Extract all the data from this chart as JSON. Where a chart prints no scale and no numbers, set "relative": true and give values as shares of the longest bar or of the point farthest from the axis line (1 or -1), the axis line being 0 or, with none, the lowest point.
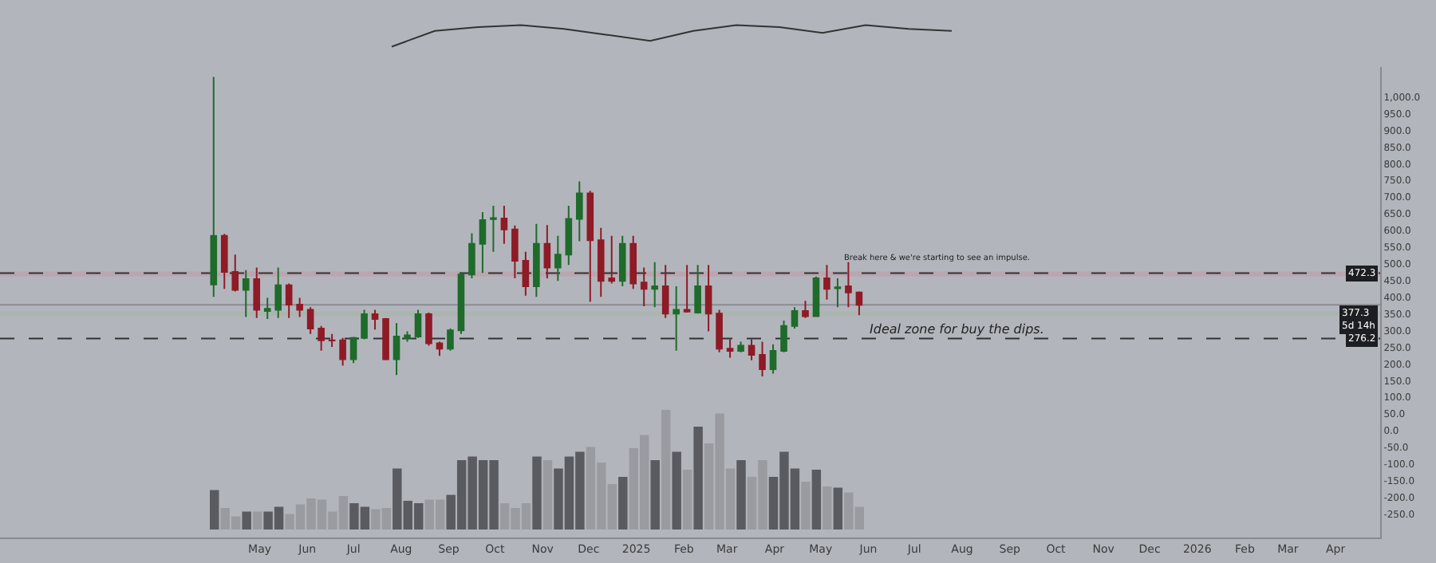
{
  "chart_data": [
    {
      "type": "line",
      "relative": true,
      "categories": [
        null,
        null,
        null,
        null,
        null,
        null,
        null,
        null,
        null,
        null,
        null,
        null,
        null,
        null
      ],
      "series": [
        {
          "color": "#333333",
          "values": [
            0,
            0.73,
            0.91,
            1,
            0.82,
            0.55,
            0.27,
            0.73,
            1,
            0.91,
            0.64,
            1,
            0.82,
            0.73
          ]
        }
      ]
    },
    {
      "type": "candlestick",
      "colors": [
        "#1e6b2b",
        "#8e1b26",
        "#8e1b26",
        "#1e6b2b",
        "#8e1b26",
        "#1e6b2b",
        "#1e6b2b",
        "#8e1b26",
        "#8e1b26",
        "#8e1b26",
        "#8e1b26",
        "#8e1b26",
        "#8e1b26",
        "#1e6b2b",
        "#1e6b2b",
        "#8e1b26",
        "#8e1b26",
        "#1e6b2b",
        "#1e6b2b",
        "#1e6b2b",
        "#8e1b26",
        "#8e1b26",
        "#1e6b2b",
        "#1e6b2b",
        "#1e6b2b",
        "#1e6b2b",
        "#1e6b2b",
        "#8e1b26",
        "#8e1b26",
        "#8e1b26",
        "#1e6b2b",
        "#8e1b26",
        "#1e6b2b",
        "#1e6b2b",
        "#1e6b2b",
        "#8e1b26",
        "#8e1b26",
        "#8e1b26",
        "#1e6b2b",
        "#8e1b26",
        "#8e1b26",
        "#1e6b2b",
        "#8e1b26",
        "#1e6b2b",
        "#8e1b26",
        "#1e6b2b",
        "#8e1b26",
        "#8e1b26",
        "#8e1b26",
        "#1e6b2b",
        "#8e1b26",
        "#8e1b26",
        "#1e6b2b",
        "#1e6b2b",
        "#1e6b2b",
        "#8e1b26",
        "#1e6b2b",
        "#8e1b26",
        "#1e6b2b",
        "#8e1b26",
        "#8e1b26"
      ],
      "x": [
        "2024-04-01",
        "2024-04-08",
        "2024-04-15",
        "2024-04-22",
        "2024-04-29",
        "2024-05-06",
        "2024-05-13",
        "2024-05-20",
        "2024-05-27",
        "2024-06-03",
        "2024-06-10",
        "2024-06-17",
        "2024-06-24",
        "2024-07-01",
        "2024-07-08",
        "2024-07-15",
        "2024-07-22",
        "2024-07-29",
        "2024-08-05",
        "2024-08-12",
        "2024-08-19",
        "2024-08-26",
        "2024-09-02",
        "2024-09-09",
        "2024-09-16",
        "2024-09-23",
        "2024-09-30",
        "2024-10-07",
        "2024-10-14",
        "2024-10-21",
        "2024-10-28",
        "2024-11-04",
        "2024-11-11",
        "2024-11-18",
        "2024-11-25",
        "2024-12-02",
        "2024-12-09",
        "2024-12-16",
        "2024-12-23",
        "2024-12-30",
        "2025-01-06",
        "2025-01-13",
        "2025-01-20",
        "2025-01-27",
        "2025-02-03",
        "2025-02-10",
        "2025-02-17",
        "2025-02-24",
        "2025-03-03",
        "2025-03-10",
        "2025-03-17",
        "2025-03-24",
        "2025-03-31",
        "2025-04-07",
        "2025-04-14",
        "2025-04-21",
        "2025-04-28",
        "2025-05-05",
        "2025-05-12",
        "2025-05-19",
        "2025-05-26"
      ],
      "ohlc": [
        [
          438,
          1060,
          401,
          584
        ],
        [
          584,
          590,
          425,
          476
        ],
        [
          476,
          528,
          417,
          422
        ],
        [
          422,
          481,
          341,
          454
        ],
        [
          454,
          489,
          338,
          362
        ],
        [
          359,
          398,
          335,
          365
        ],
        [
          362,
          489,
          338,
          436
        ],
        [
          436,
          441,
          338,
          378
        ],
        [
          378,
          398,
          341,
          362
        ],
        [
          362,
          370,
          290,
          306
        ],
        [
          306,
          314,
          240,
          271
        ],
        [
          271,
          290,
          251,
          270
        ],
        [
          271,
          278,
          195,
          214
        ],
        [
          214,
          281,
          203,
          278
        ],
        [
          278,
          362,
          274,
          349
        ],
        [
          349,
          362,
          303,
          335
        ],
        [
          335,
          338,
          211,
          214
        ],
        [
          214,
          322,
          167,
          282
        ],
        [
          278,
          298,
          267,
          286
        ],
        [
          282,
          362,
          278,
          349
        ],
        [
          349,
          354,
          255,
          262
        ],
        [
          262,
          267,
          224,
          246
        ],
        [
          246,
          306,
          240,
          301
        ],
        [
          301,
          475,
          290,
          468
        ],
        [
          468,
          592,
          457,
          560
        ],
        [
          560,
          655,
          473,
          631
        ],
        [
          634,
          674,
          536,
          637
        ],
        [
          636,
          674,
          560,
          603
        ],
        [
          603,
          615,
          457,
          509
        ],
        [
          509,
          536,
          405,
          433
        ],
        [
          433,
          620,
          401,
          560
        ],
        [
          560,
          616,
          457,
          489
        ],
        [
          489,
          584,
          449,
          528
        ],
        [
          528,
          674,
          497,
          635
        ],
        [
          635,
          747,
          568,
          711
        ],
        [
          711,
          719,
          386,
          571
        ],
        [
          571,
          608,
          401,
          449
        ],
        [
          457,
          584,
          441,
          449
        ],
        [
          449,
          584,
          433,
          560
        ],
        [
          560,
          584,
          425,
          441
        ],
        [
          444,
          489,
          373,
          425
        ],
        [
          425,
          505,
          370,
          433
        ],
        [
          433,
          497,
          338,
          351
        ],
        [
          351,
          433,
          240,
          362
        ],
        [
          362,
          497,
          354,
          357
        ],
        [
          354,
          497,
          351,
          433
        ],
        [
          433,
          497,
          298,
          351
        ],
        [
          351,
          362,
          235,
          246
        ],
        [
          246,
          274,
          219,
          239
        ],
        [
          239,
          267,
          235,
          255
        ],
        [
          255,
          274,
          211,
          227
        ],
        [
          227,
          267,
          163,
          184
        ],
        [
          184,
          259,
          171,
          239
        ],
        [
          239,
          330,
          235,
          314
        ],
        [
          314,
          370,
          306,
          359
        ],
        [
          359,
          389,
          338,
          343
        ],
        [
          343,
          462,
          341,
          457
        ],
        [
          457,
          497,
          393,
          425
        ],
        [
          427,
          457,
          370,
          430
        ],
        [
          433,
          505,
          370,
          414
        ],
        [
          414,
          417,
          346,
          377
        ]
      ],
      "xlim": [
        "2023-11-14",
        "2026-04-30"
      ],
      "xticks": [
        {
          "value": "2024-05-01",
          "label": "May"
        },
        {
          "value": "2024-06-01",
          "label": "Jun"
        },
        {
          "value": "2024-07-01",
          "label": "Jul"
        },
        {
          "value": "2024-08-01",
          "label": "Aug"
        },
        {
          "value": "2024-09-01",
          "label": "Sep"
        },
        {
          "value": "2024-10-01",
          "label": "Oct"
        },
        {
          "value": "2024-11-01",
          "label": "Nov"
        },
        {
          "value": "2024-12-01",
          "label": "Dec"
        },
        {
          "value": "2025-01-01",
          "label": "2025"
        },
        {
          "value": "2025-02-01",
          "label": "Feb"
        },
        {
          "value": "2025-03-01",
          "label": "Mar"
        },
        {
          "value": "2025-04-01",
          "label": "Apr"
        },
        {
          "value": "2025-05-01",
          "label": "May"
        },
        {
          "value": "2025-06-01",
          "label": "Jun"
        },
        {
          "value": "2025-07-01",
          "label": "Jul"
        },
        {
          "value": "2025-08-01",
          "label": "Aug"
        },
        {
          "value": "2025-09-01",
          "label": "Sep"
        },
        {
          "value": "2025-10-01",
          "label": "Oct"
        },
        {
          "value": "2025-11-01",
          "label": "Nov"
        },
        {
          "value": "2025-12-01",
          "label": "Dec"
        },
        {
          "value": "2026-01-01",
          "label": "2026"
        },
        {
          "value": "2026-02-01",
          "label": "Feb"
        },
        {
          "value": "2026-03-01",
          "label": "Mar"
        },
        {
          "value": "2026-04-01",
          "label": "Apr"
        }
      ],
      "ylim": [
        -320,
        1090
      ],
      "yticks": [
        {
          "value": 1000,
          "label": "1,000.0"
        },
        {
          "value": 950,
          "label": "950.0"
        },
        {
          "value": 900,
          "label": "900.0"
        },
        {
          "value": 850,
          "label": "850.0"
        },
        {
          "value": 800,
          "label": "800.0"
        },
        {
          "value": 750,
          "label": "750.0"
        },
        {
          "value": 700,
          "label": "700.0"
        },
        {
          "value": 650,
          "label": "650.0"
        },
        {
          "value": 600,
          "label": "600.0"
        },
        {
          "value": 550,
          "label": "550.0"
        },
        {
          "value": 500,
          "label": "500.0"
        },
        {
          "value": 450,
          "label": "450.0"
        },
        {
          "value": 400,
          "label": "400.0"
        },
        {
          "value": 350,
          "label": "350.0"
        },
        {
          "value": 300,
          "label": "300.0"
        },
        {
          "value": 250,
          "label": "250.0"
        },
        {
          "value": 200,
          "label": "200.0"
        },
        {
          "value": 150,
          "label": "150.0"
        },
        {
          "value": 100,
          "label": "100.0"
        },
        {
          "value": 50,
          "label": "50.0"
        },
        {
          "value": 0,
          "label": "0.0"
        },
        {
          "value": -50,
          "label": "-50.0"
        },
        {
          "value": -100,
          "label": "-100.0"
        },
        {
          "value": -150,
          "label": "-150.0"
        },
        {
          "value": -200,
          "label": "-200.0"
        },
        {
          "value": -250,
          "label": "-250.0"
        }
      ],
      "ref_lines": [
        {
          "axis": "y",
          "value": 472.3,
          "label": "472.3",
          "line_style": "dashed",
          "color": "#333333"
        },
        {
          "axis": "y",
          "value": 377.3,
          "label": "377.3\n5d 14h",
          "line_style": "solid",
          "color": "#8a8c93"
        },
        {
          "axis": "y",
          "value": 276.2,
          "label": "276.2",
          "line_style": "dashed",
          "color": "#333333"
        }
      ],
      "bands": [
        {
          "axis": "y",
          "from": 462,
          "to": 477,
          "color": "#c98a96"
        },
        {
          "axis": "y",
          "from": 343,
          "to": 357,
          "color": "#9cb59c"
        }
      ],
      "annotations": [
        "Break here & we're starting to see an impulse.",
        "Ideal zone for buy the dips."
      ]
    },
    {
      "type": "bar",
      "relative": true,
      "categories": [
        null,
        null,
        null,
        null,
        null,
        null,
        null,
        null,
        null,
        null,
        null,
        null,
        null,
        null,
        null,
        null,
        null,
        null,
        null,
        null,
        null,
        null,
        null,
        null,
        null,
        null,
        null,
        null,
        null,
        null,
        null,
        null,
        null,
        null,
        null,
        null,
        null,
        null,
        null,
        null,
        null,
        null,
        null,
        null,
        null,
        null,
        null,
        null,
        null,
        null,
        null,
        null,
        null,
        null,
        null,
        null,
        null,
        null,
        null,
        null,
        null
      ],
      "values": [
        0.33,
        0.18,
        0.11,
        0.15,
        0.15,
        0.15,
        0.19,
        0.13,
        0.21,
        0.26,
        0.25,
        0.15,
        0.28,
        0.22,
        0.19,
        0.17,
        0.18,
        0.51,
        0.24,
        0.22,
        0.25,
        0.25,
        0.29,
        0.58,
        0.61,
        0.58,
        0.58,
        0.22,
        0.18,
        0.22,
        0.61,
        0.58,
        0.51,
        0.61,
        0.65,
        0.69,
        0.56,
        0.38,
        0.44,
        0.68,
        0.79,
        0.58,
        1,
        0.65,
        0.5,
        0.86,
        0.72,
        0.97,
        0.51,
        0.58,
        0.44,
        0.58,
        0.44,
        0.65,
        0.51,
        0.4,
        0.5,
        0.36,
        0.35,
        0.31,
        0.19
      ],
      "colors": [
        "#5a5b60",
        "#9a9ba1",
        "#9a9ba1",
        "#5a5b60",
        "#9a9ba1",
        "#5a5b60",
        "#5a5b60",
        "#9a9ba1",
        "#9a9ba1",
        "#9a9ba1",
        "#9a9ba1",
        "#9a9ba1",
        "#9a9ba1",
        "#5a5b60",
        "#5a5b60",
        "#9a9ba1",
        "#9a9ba1",
        "#5a5b60",
        "#5a5b60",
        "#5a5b60",
        "#9a9ba1",
        "#9a9ba1",
        "#5a5b60",
        "#5a5b60",
        "#5a5b60",
        "#5a5b60",
        "#5a5b60",
        "#9a9ba1",
        "#9a9ba1",
        "#9a9ba1",
        "#5a5b60",
        "#9a9ba1",
        "#5a5b60",
        "#5a5b60",
        "#5a5b60",
        "#9a9ba1",
        "#9a9ba1",
        "#9a9ba1",
        "#5a5b60",
        "#9a9ba1",
        "#9a9ba1",
        "#5a5b60",
        "#9a9ba1",
        "#5a5b60",
        "#9a9ba1",
        "#5a5b60",
        "#9a9ba1",
        "#9a9ba1",
        "#9a9ba1",
        "#5a5b60",
        "#9a9ba1",
        "#9a9ba1",
        "#5a5b60",
        "#5a5b60",
        "#5a5b60",
        "#9a9ba1",
        "#5a5b60",
        "#9a9ba1",
        "#5a5b60",
        "#9a9ba1",
        "#9a9ba1"
      ]
    }
  ]
}
